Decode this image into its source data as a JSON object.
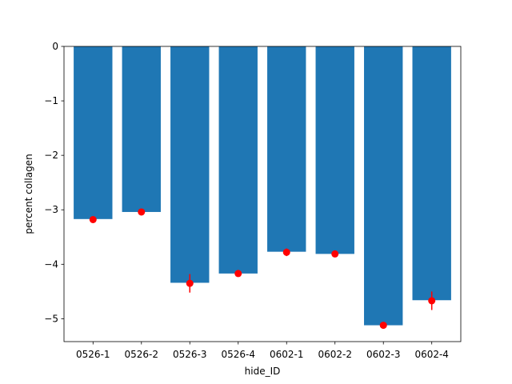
{
  "chart_data": {
    "type": "bar",
    "title": "",
    "xlabel": "hide_ID",
    "ylabel": "percent collagen",
    "categories": [
      "0526-1",
      "0526-2",
      "0526-3",
      "0526-4",
      "0602-1",
      "0602-2",
      "0602-3",
      "0602-4"
    ],
    "values": [
      -3.17,
      -3.04,
      -4.34,
      -4.17,
      -3.77,
      -3.81,
      -5.12,
      -4.66
    ],
    "points": [
      -3.18,
      -3.04,
      -4.35,
      -4.17,
      -3.78,
      -3.81,
      -5.12,
      -4.67
    ],
    "errors": [
      0.03,
      0.02,
      0.17,
      0.02,
      0.07,
      0.03,
      0.03,
      0.17
    ],
    "ylim": [
      -5.42,
      0
    ],
    "yticks": [
      0,
      -1,
      -2,
      -3,
      -4,
      -5
    ],
    "ytick_labels": [
      "0",
      "−1",
      "−2",
      "−3",
      "−4",
      "−5"
    ],
    "grid": false,
    "legend": "none",
    "colors": {
      "bar": "#1f77b4",
      "point": "#ff0000",
      "axis": "#000000"
    }
  }
}
